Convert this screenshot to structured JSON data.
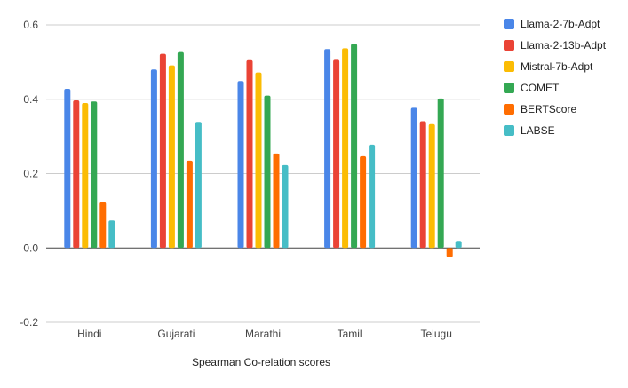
{
  "chart_data": {
    "type": "bar",
    "title": "",
    "xlabel": "Spearman Co-relation scores",
    "ylabel": "",
    "categories": [
      "Hindi",
      "Gujarati",
      "Marathi",
      "Tamil",
      "Telugu"
    ],
    "ylim": [
      -0.2,
      0.6
    ],
    "yticks": [
      -0.2,
      0.0,
      0.2,
      0.4,
      0.6
    ],
    "ytick_labels": [
      "-0.2",
      "0.0",
      "0.2",
      "0.4",
      "0.6"
    ],
    "grid": true,
    "legend_position": "right",
    "series": [
      {
        "name": "Llama-2-7b-Adpt",
        "color": "#4a86e8",
        "values": [
          0.428,
          0.48,
          0.449,
          0.535,
          0.377
        ]
      },
      {
        "name": "Llama-2-13b-Adpt",
        "color": "#ea4335",
        "values": [
          0.397,
          0.522,
          0.505,
          0.506,
          0.341
        ]
      },
      {
        "name": "Mistral-7b-Adpt",
        "color": "#fbbc04",
        "values": [
          0.39,
          0.491,
          0.472,
          0.537,
          0.333
        ]
      },
      {
        "name": "COMET",
        "color": "#34a853",
        "values": [
          0.394,
          0.527,
          0.41,
          0.549,
          0.402
        ]
      },
      {
        "name": "BERTScore",
        "color": "#ff6d01",
        "values": [
          0.123,
          0.235,
          0.254,
          0.247,
          -0.025
        ]
      },
      {
        "name": "LABSE",
        "color": "#46bdc6",
        "values": [
          0.074,
          0.339,
          0.223,
          0.278,
          0.019
        ]
      }
    ]
  }
}
